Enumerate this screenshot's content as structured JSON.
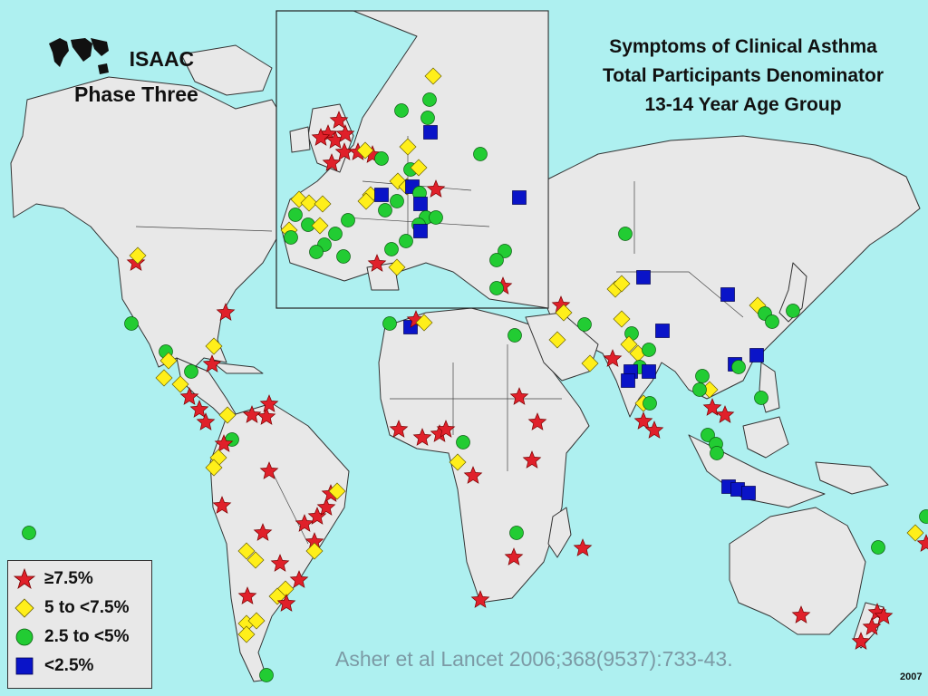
{
  "brand": {
    "line1": "ISAAC",
    "line2": "Phase Three"
  },
  "title": {
    "line1": "Symptoms of Clinical Asthma",
    "line2": "Total Participants Denominator",
    "line3": "13-14 Year Age Group"
  },
  "legend": {
    "items": [
      {
        "label": "≥7.5%",
        "symbol": "star",
        "color": "#e0202a"
      },
      {
        "label": "5 to <7.5%",
        "symbol": "diamond",
        "color": "#ffef1a"
      },
      {
        "label": "2.5 to <5%",
        "symbol": "circle",
        "color": "#22cc33"
      },
      {
        "label": "<2.5%",
        "symbol": "square",
        "color": "#0a14c8"
      }
    ]
  },
  "citation": "Asher et al Lancet 2006;368(9537):733-43.",
  "year": "2007",
  "colors": {
    "ocean": "#aef0f0",
    "land": "#e8e8e8"
  }
}
